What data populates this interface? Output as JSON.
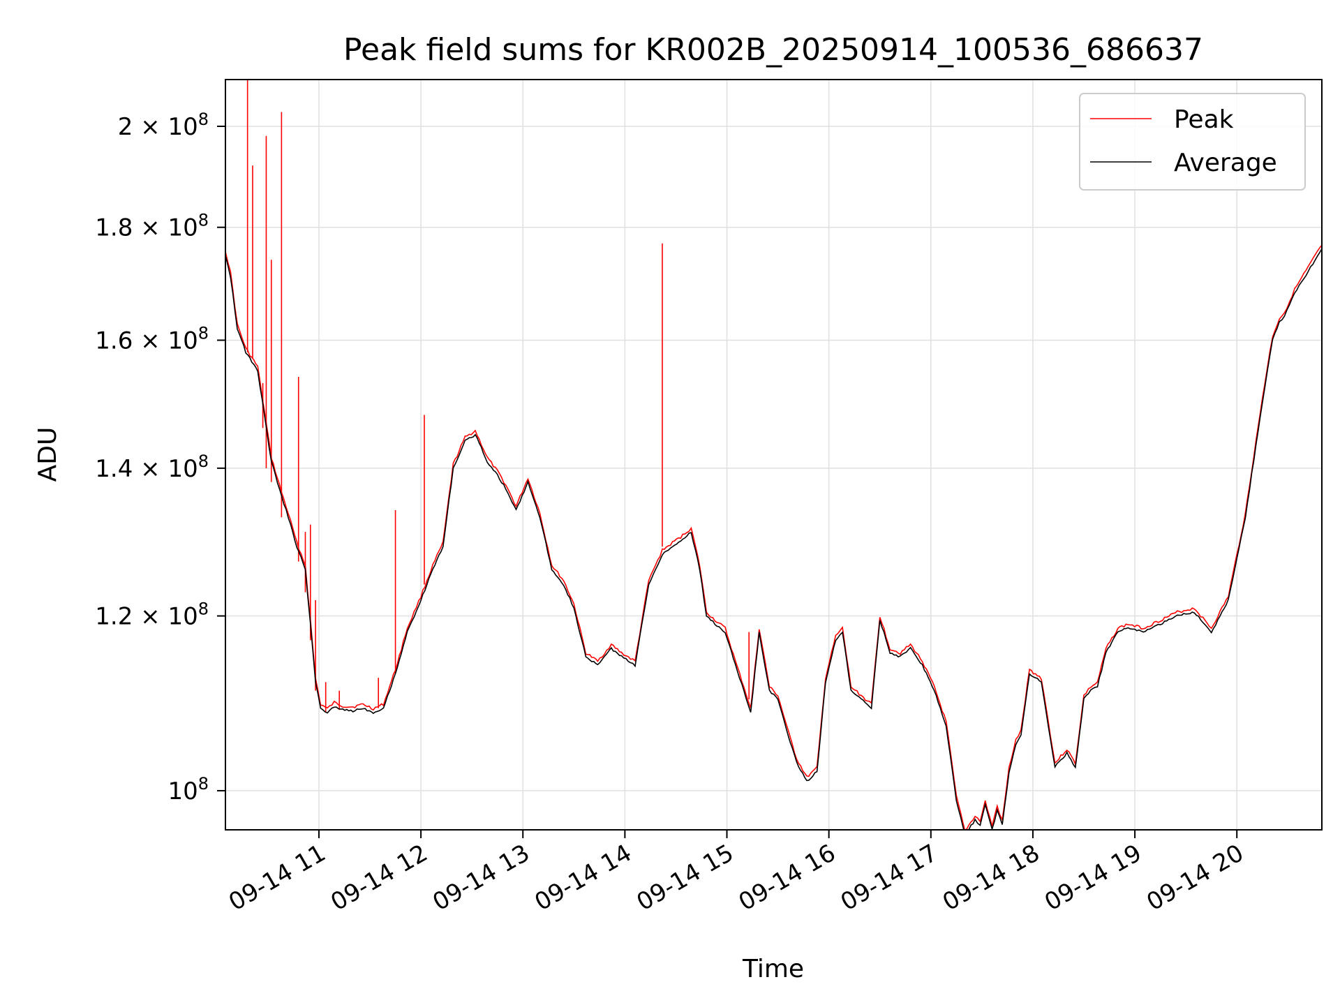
{
  "chart_data": {
    "type": "line",
    "title": "Peak field sums for KR002B_20250914_100536_686637",
    "xlabel": "Time",
    "ylabel": "ADU",
    "x_range": [
      "09-14 10:05",
      "09-14 20:50"
    ],
    "ylim": [
      96000000,
      210000000
    ],
    "y_scale": "log",
    "grid": true,
    "legend": "top-right",
    "x_ticks": [
      "09-14 11",
      "09-14 12",
      "09-14 13",
      "09-14 14",
      "09-14 15",
      "09-14 16",
      "09-14 17",
      "09-14 18",
      "09-14 19",
      "09-14 20"
    ],
    "y_ticks": [
      {
        "value": 100000000,
        "mant": "",
        "exp": "8"
      },
      {
        "value": 120000000,
        "mant": "1.2",
        "exp": "8"
      },
      {
        "value": 140000000,
        "mant": "1.4",
        "exp": "8"
      },
      {
        "value": 160000000,
        "mant": "1.6",
        "exp": "8"
      },
      {
        "value": 180000000,
        "mant": "1.8",
        "exp": "8"
      },
      {
        "value": 200000000,
        "mant": "2",
        "exp": "8"
      }
    ],
    "series": [
      {
        "name": "Average",
        "color": "#000000",
        "x": [
          "09-14 10:05",
          "09-14 10:08",
          "09-14 10:12",
          "09-14 10:17",
          "09-14 10:24",
          "09-14 10:32",
          "09-14 10:38",
          "09-14 10:42",
          "09-14 10:47",
          "09-14 10:52",
          "09-14 10:55",
          "09-14 10:58",
          "09-14 11:01",
          "09-14 11:05",
          "09-14 11:09",
          "09-14 11:14",
          "09-14 11:20",
          "09-14 11:26",
          "09-14 11:32",
          "09-14 11:38",
          "09-14 11:45",
          "09-14 11:52",
          "09-14 12:00",
          "09-14 12:07",
          "09-14 12:13",
          "09-14 12:19",
          "09-14 12:26",
          "09-14 12:32",
          "09-14 12:39",
          "09-14 12:45",
          "09-14 12:50",
          "09-14 12:56",
          "09-14 13:03",
          "09-14 13:10",
          "09-14 13:17",
          "09-14 13:24",
          "09-14 13:30",
          "09-14 13:37",
          "09-14 13:44",
          "09-14 13:52",
          "09-14 13:58",
          "09-14 14:06",
          "09-14 14:14",
          "09-14 14:22",
          "09-14 14:28",
          "09-14 14:34",
          "09-14 14:39",
          "09-14 14:44",
          "09-14 14:48",
          "09-14 14:53",
          "09-14 14:59",
          "09-14 15:05",
          "09-14 15:10",
          "09-14 15:14",
          "09-14 15:19",
          "09-14 15:25",
          "09-14 15:30",
          "09-14 15:36",
          "09-14 15:41",
          "09-14 15:47",
          "09-14 15:53",
          "09-14 15:58",
          "09-14 16:04",
          "09-14 16:08",
          "09-14 16:13",
          "09-14 16:19",
          "09-14 16:25",
          "09-14 16:30",
          "09-14 16:36",
          "09-14 16:42",
          "09-14 16:48",
          "09-14 16:55",
          "09-14 17:02",
          "09-14 17:09",
          "09-14 17:15",
          "09-14 17:20",
          "09-14 17:26",
          "09-14 17:29",
          "09-14 17:32",
          "09-14 17:36",
          "09-14 17:39",
          "09-14 17:42",
          "09-14 17:46",
          "09-14 17:50",
          "09-14 17:53",
          "09-14 17:58",
          "09-14 18:05",
          "09-14 18:13",
          "09-14 18:20",
          "09-14 18:25",
          "09-14 18:30",
          "09-14 18:34",
          "09-14 18:38",
          "09-14 18:43",
          "09-14 18:50",
          "09-14 18:56",
          "09-14 19:05",
          "09-14 19:15",
          "09-14 19:25",
          "09-14 19:35",
          "09-14 19:45",
          "09-14 19:55",
          "09-14 20:05",
          "09-14 20:15",
          "09-14 20:18",
          "09-14 20:21",
          "09-14 20:25",
          "09-14 20:28",
          "09-14 20:31",
          "09-14 20:34",
          "09-14 20:38",
          "09-14 20:42",
          "09-14 20:46",
          "09-14 20:50"
        ],
        "values": [
          175000000,
          171000000,
          162000000,
          158000000,
          155000000,
          141000000,
          136000000,
          133000000,
          129000000,
          126000000,
          119000000,
          112000000,
          109000000,
          108500000,
          109200000,
          108800000,
          108700000,
          109000000,
          108500000,
          109000000,
          113000000,
          118000000,
          122000000,
          126000000,
          129000000,
          140000000,
          144000000,
          145000000,
          141000000,
          139000000,
          137000000,
          134000000,
          138000000,
          133000000,
          126000000,
          124000000,
          121000000,
          115000000,
          114000000,
          116000000,
          115000000,
          114000000,
          124000000,
          128000000,
          129000000,
          130000000,
          131000000,
          126000000,
          120000000,
          119000000,
          118000000,
          114000000,
          111000000,
          108500000,
          118000000,
          111000000,
          110000000,
          106000000,
          103000000,
          101000000,
          102000000,
          112000000,
          117000000,
          118000000,
          111000000,
          110000000,
          109000000,
          119500000,
          115500000,
          115000000,
          116000000,
          114000000,
          111000000,
          107000000,
          99000000,
          95500000,
          97000000,
          96500000,
          98500000,
          96000000,
          98000000,
          96500000,
          102000000,
          105000000,
          106000000,
          113000000,
          112000000,
          102500000,
          104000000,
          102500000,
          110000000,
          111000000,
          111500000,
          115500000,
          118000000,
          118500000,
          118000000,
          119000000,
          120000000,
          120500000,
          118000000,
          122000000,
          133000000,
          150000000,
          155000000,
          160000000,
          163000000,
          164000000,
          166000000,
          168000000,
          170000000,
          172000000,
          174000000,
          176000000
        ]
      },
      {
        "name": "Peak",
        "color": "#ff0000",
        "spikes": [
          {
            "x": "09-14 10:18",
            "base": 158000000,
            "peak": 210000000
          },
          {
            "x": "09-14 10:21",
            "base": 157000000,
            "peak": 192000000
          },
          {
            "x": "09-14 10:27",
            "base": 146000000,
            "peak": 153000000
          },
          {
            "x": "09-14 10:29",
            "base": 140000000,
            "peak": 198000000
          },
          {
            "x": "09-14 10:32",
            "base": 138000000,
            "peak": 174000000
          },
          {
            "x": "09-14 10:38",
            "base": 133000000,
            "peak": 203000000
          },
          {
            "x": "09-14 10:48",
            "base": 127000000,
            "peak": 154000000
          },
          {
            "x": "09-14 10:52",
            "base": 123000000,
            "peak": 131000000
          },
          {
            "x": "09-14 10:55",
            "base": 117000000,
            "peak": 132000000
          },
          {
            "x": "09-14 10:58",
            "base": 111000000,
            "peak": 122000000
          },
          {
            "x": "09-14 11:04",
            "base": 108500000,
            "peak": 112000000
          },
          {
            "x": "09-14 11:12",
            "base": 108800000,
            "peak": 111000000
          },
          {
            "x": "09-14 11:35",
            "base": 109000000,
            "peak": 112500000
          },
          {
            "x": "09-14 11:45",
            "base": 113000000,
            "peak": 134000000
          },
          {
            "x": "09-14 12:02",
            "base": 124000000,
            "peak": 148000000
          },
          {
            "x": "09-14 14:22",
            "base": 129000000,
            "peak": 177000000
          },
          {
            "x": "09-14 15:13",
            "base": 110000000,
            "peak": 118000000
          }
        ]
      }
    ]
  }
}
